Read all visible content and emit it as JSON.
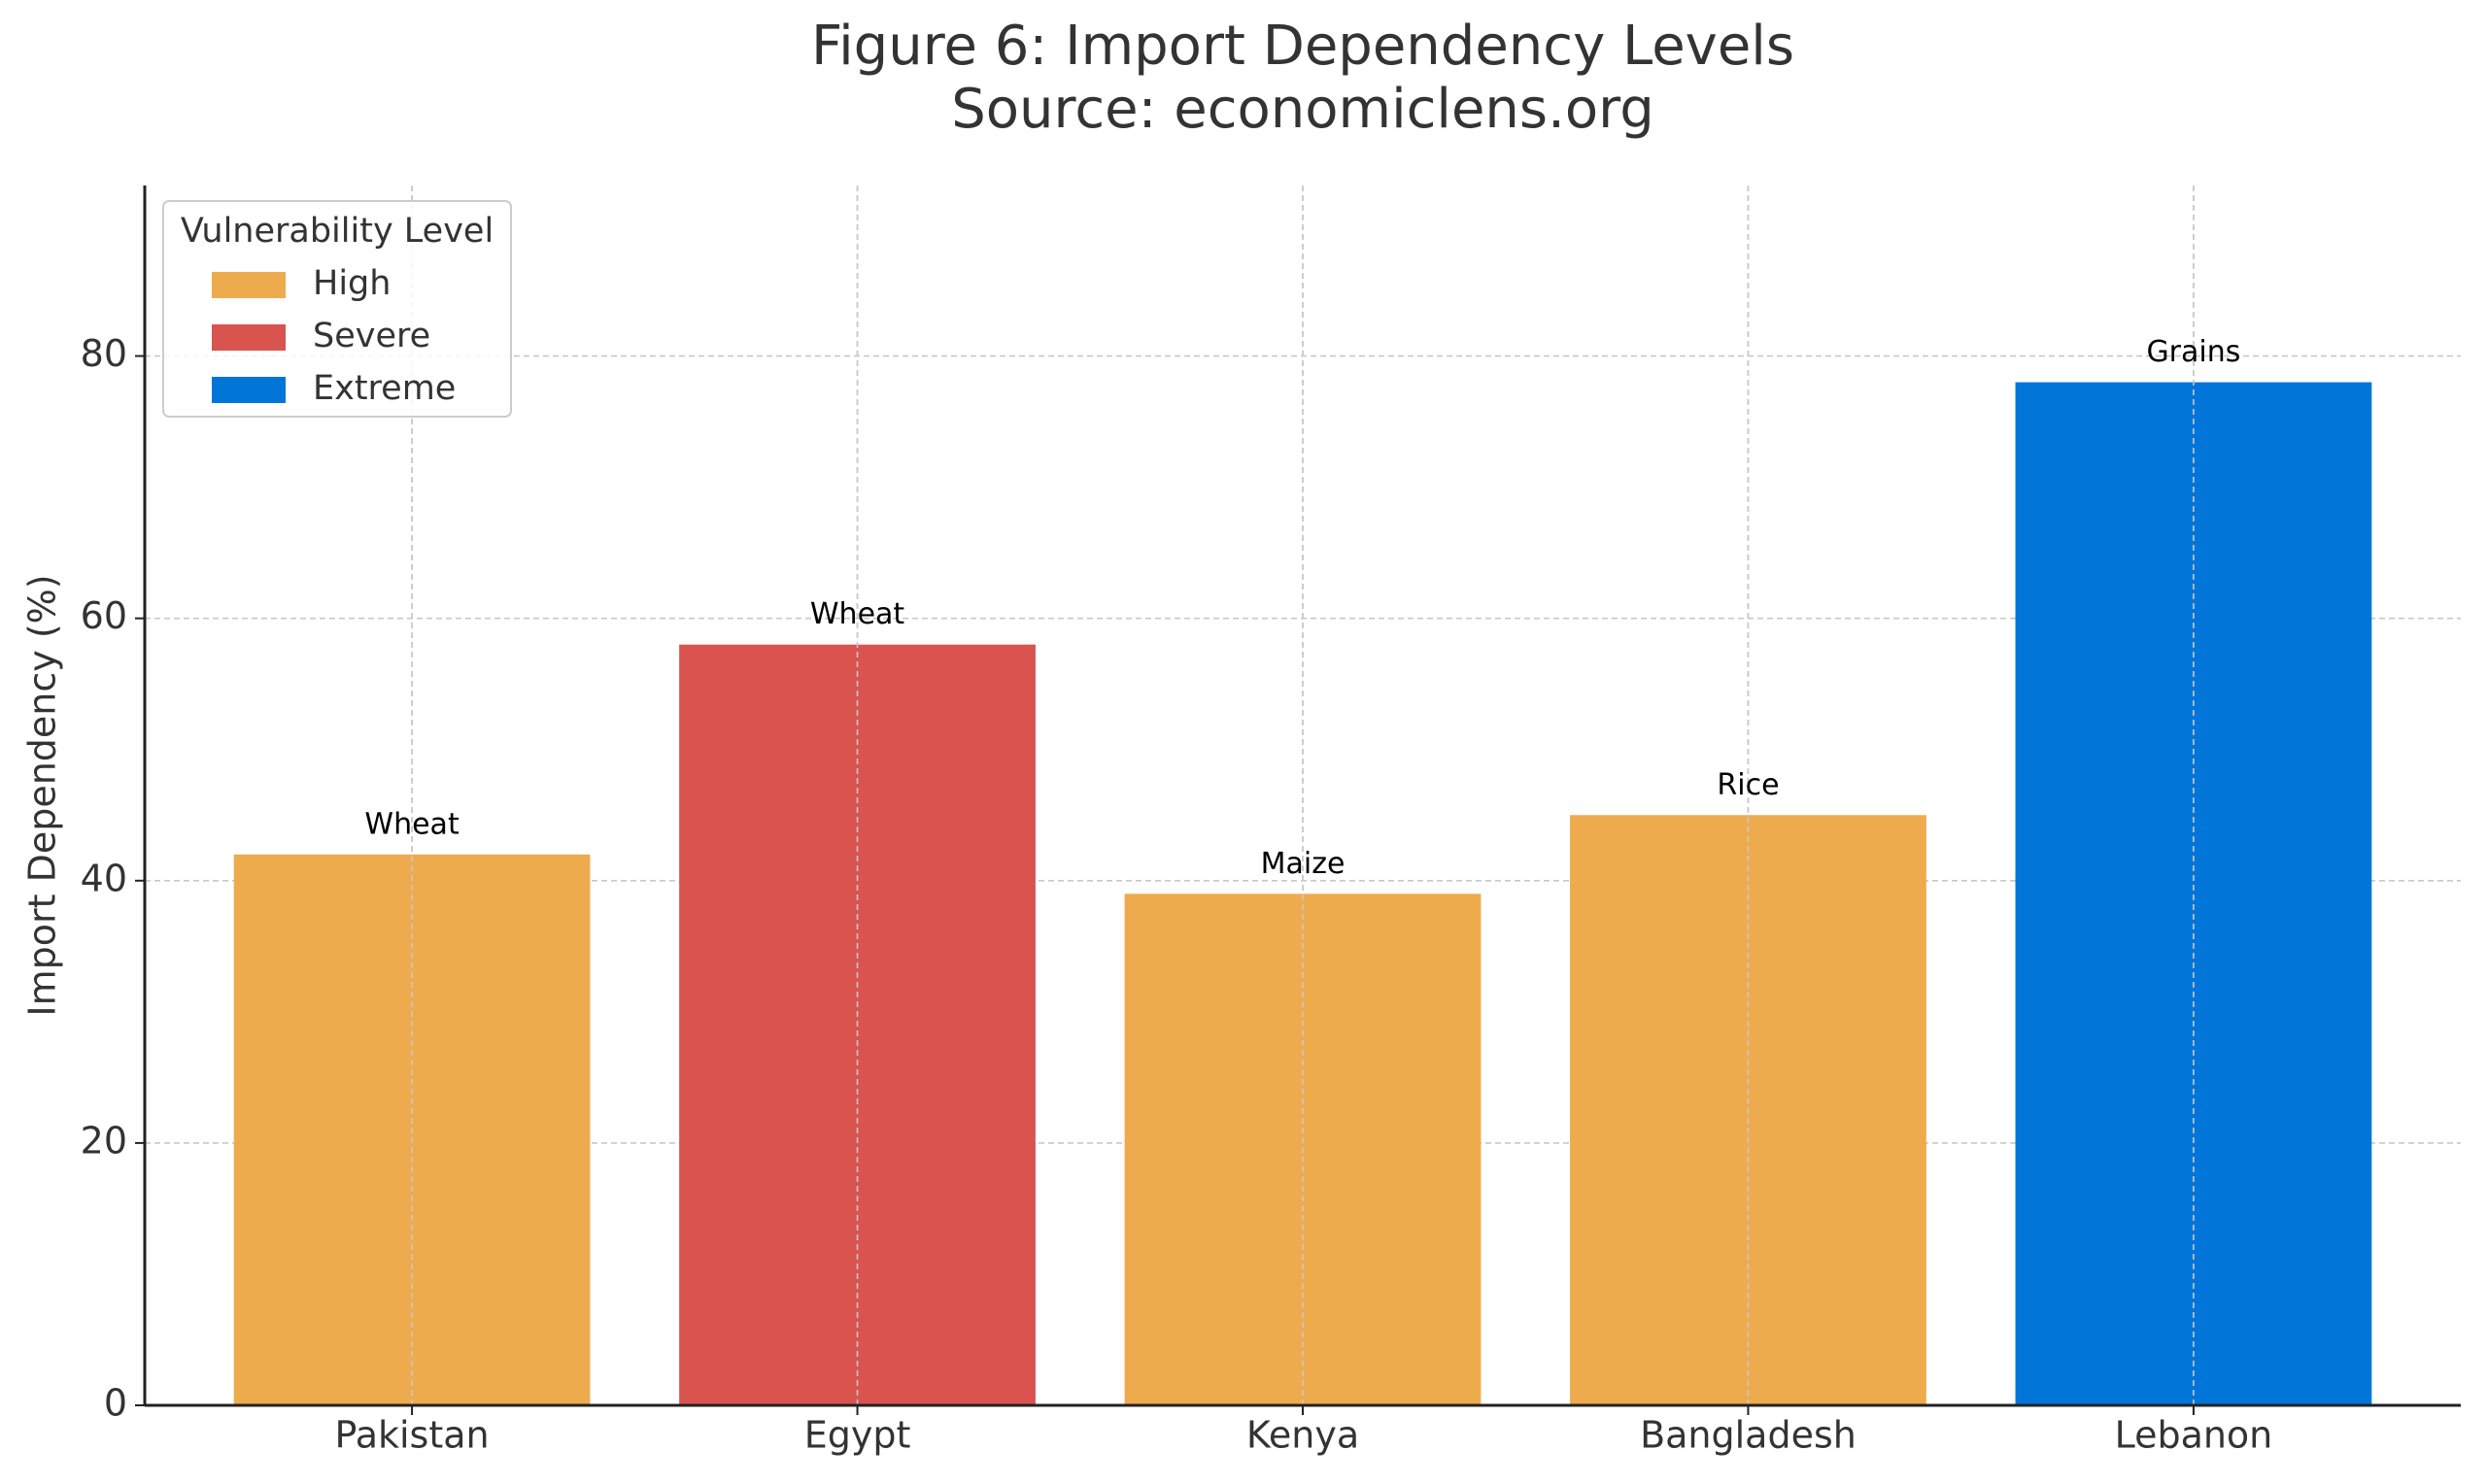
{
  "chart_data": {
    "type": "bar",
    "title": "Figure 6: Import Dependency Levels",
    "subtitle": "Source: economiclens.org",
    "y_label": "Import Dependency (%)",
    "categories": [
      "Pakistan",
      "Egypt",
      "Kenya",
      "Bangladesh",
      "Lebanon"
    ],
    "series": [
      {
        "name": "High",
        "color": "#eeab4d",
        "values": [
          42,
          null,
          39,
          45,
          null
        ]
      },
      {
        "name": "Severe",
        "color": "#d9534f",
        "values": [
          null,
          58,
          null,
          null,
          null
        ]
      },
      {
        "name": "Extreme",
        "color": "#0275d8",
        "values": [
          null,
          null,
          null,
          null,
          78
        ]
      }
    ],
    "bar_labels": [
      "Wheat",
      "Wheat",
      "Maize",
      "Rice",
      "Grains"
    ],
    "legend_title": "Vulnerability Level",
    "legend_position": "upper left",
    "ylim": [
      0,
      93
    ],
    "yticks": [
      0,
      20,
      40,
      60,
      80
    ],
    "grid": true
  }
}
